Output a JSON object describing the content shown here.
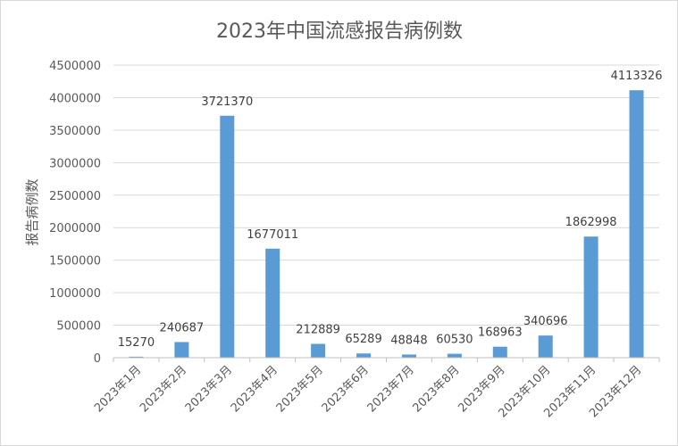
{
  "chart_data": {
    "type": "bar",
    "title": "2023年中国流感报告病例数",
    "xlabel": "",
    "ylabel": "报告病例数",
    "categories": [
      "2023年1月",
      "2023年2月",
      "2023年3月",
      "2023年4月",
      "2023年5月",
      "2023年6月",
      "2023年7月",
      "2023年8月",
      "2023年9月",
      "2023年10月",
      "2023年11月",
      "2023年12月"
    ],
    "values": [
      15270,
      240687,
      3721370,
      1677011,
      212889,
      65289,
      48848,
      60530,
      168963,
      340696,
      1862998,
      4113326
    ],
    "ylim": [
      0,
      4500000
    ],
    "yticks": [
      0,
      500000,
      1000000,
      1500000,
      2000000,
      2500000,
      3000000,
      3500000,
      4000000,
      4500000
    ],
    "grid": true,
    "legend": "none",
    "data_labels": true,
    "bar_color": "#5b9bd5"
  }
}
